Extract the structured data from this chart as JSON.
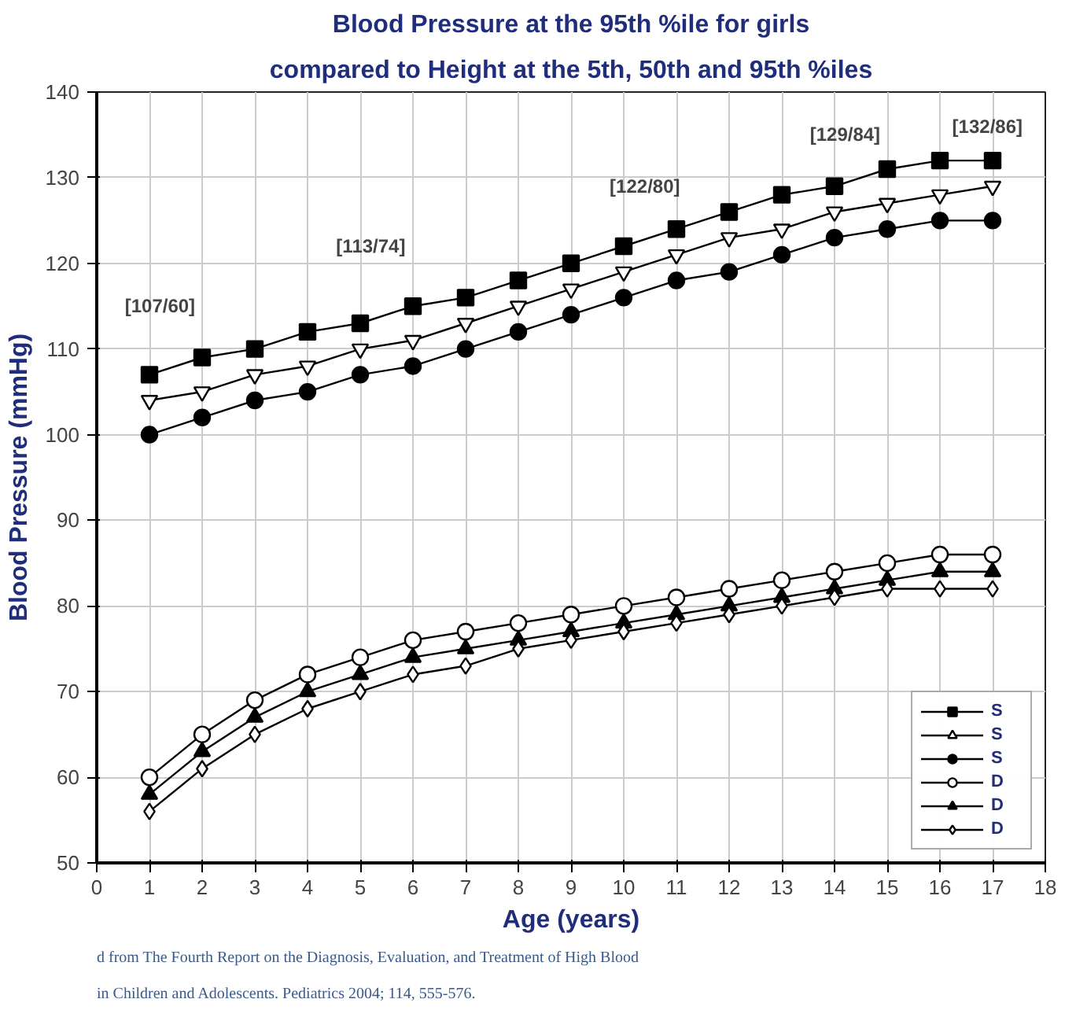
{
  "chart_data": {
    "type": "line",
    "title": "Blood Pressure at the 95th %ile for girls",
    "subtitle": "compared to Height at the 5th, 50th and 95th %iles",
    "xlabel": "Age (years)",
    "ylabel": "Blood Pressure (mmHg)",
    "x": [
      1,
      2,
      3,
      4,
      5,
      6,
      7,
      8,
      9,
      10,
      11,
      12,
      13,
      14,
      15,
      16,
      17
    ],
    "series": [
      {
        "name": "S",
        "color": "#000000",
        "marker": "square",
        "values": [
          107,
          109,
          110,
          112,
          113,
          115,
          116,
          118,
          120,
          122,
          124,
          126,
          128,
          129,
          131,
          132,
          132
        ]
      },
      {
        "name": "S",
        "color": "#000000",
        "marker": "triangle",
        "values": [
          104,
          105,
          107,
          108,
          110,
          111,
          113,
          115,
          117,
          119,
          121,
          123,
          124,
          126,
          127,
          128,
          129
        ]
      },
      {
        "name": "S",
        "color": "#000000",
        "marker": "circle",
        "values": [
          100,
          102,
          104,
          105,
          107,
          108,
          110,
          112,
          114,
          116,
          118,
          119,
          121,
          123,
          124,
          125,
          125
        ]
      },
      {
        "name": "D",
        "color": "#000000",
        "marker": "circle",
        "values": [
          60,
          65,
          69,
          72,
          74,
          76,
          77,
          78,
          79,
          80,
          81,
          82,
          83,
          84,
          85,
          86,
          86
        ]
      },
      {
        "name": "D",
        "color": "#000000",
        "marker": "triangle",
        "values": [
          58,
          63,
          67,
          70,
          72,
          74,
          75,
          76,
          77,
          78,
          79,
          80,
          81,
          82,
          83,
          84,
          84
        ]
      },
      {
        "name": "D",
        "color": "#000000",
        "marker": "diamond",
        "values": [
          56,
          61,
          65,
          68,
          70,
          72,
          73,
          75,
          76,
          77,
          78,
          79,
          80,
          81,
          82,
          82,
          82
        ]
      }
    ],
    "xlim": [
      0,
      18
    ],
    "xticks": [
      0,
      1,
      2,
      3,
      4,
      5,
      6,
      7,
      8,
      9,
      10,
      11,
      12,
      13,
      14,
      15,
      16,
      17,
      18
    ],
    "ylim": [
      50,
      140
    ],
    "yticks": [
      50,
      60,
      70,
      80,
      90,
      100,
      110,
      120,
      130,
      140
    ],
    "grid": true,
    "legend": "bottom right",
    "line_style": "solid",
    "annotations": [
      "[107/60]",
      "[113/74]",
      "[122/80]",
      "[129/84]",
      "[132/86]",
      "d from The Fourth Report on the Diagnosis, Evaluation, and Treatment of High Blood",
      "in Children and Adolescents. Pediatrics 2004; 114, 555-576."
    ]
  }
}
